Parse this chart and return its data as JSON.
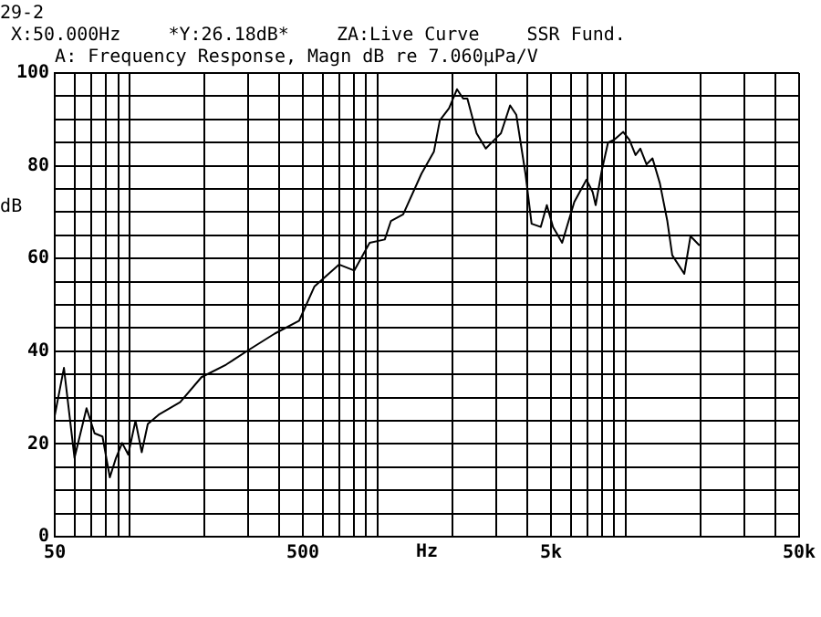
{
  "chart_data": {
    "type": "line",
    "title": "A: Frequency Response, Magn dB re 7.060µPa/V",
    "xlabel": "Hz",
    "ylabel": "dB",
    "annotations": [
      "29-2",
      "X:50.000Hz",
      "*Y:26.18dB*",
      "ZA:Live Curve",
      "SSR Fund."
    ],
    "log": "x",
    "grid": true,
    "marker": "none",
    "line_style": "solid",
    "xlim": [
      50,
      50000
    ],
    "ylim": [
      0,
      100
    ],
    "xticks": [
      50,
      {
        "value": 60,
        "label": null
      },
      {
        "value": 70,
        "label": null
      },
      {
        "value": 80,
        "label": null
      },
      {
        "value": 90,
        "label": null
      },
      {
        "value": 100,
        "label": null
      },
      {
        "value": 200,
        "label": null
      },
      {
        "value": 300,
        "label": null
      },
      {
        "value": 400,
        "label": null
      },
      500,
      {
        "value": 600,
        "label": null
      },
      {
        "value": 700,
        "label": null
      },
      {
        "value": 800,
        "label": null
      },
      {
        "value": 900,
        "label": null
      },
      {
        "value": 1000,
        "label": null
      },
      {
        "value": 2000,
        "label": null
      },
      {
        "value": 3000,
        "label": null
      },
      {
        "value": 4000,
        "label": null
      },
      {
        "value": 5000,
        "label": "5k"
      },
      {
        "value": 6000,
        "label": null
      },
      {
        "value": 7000,
        "label": null
      },
      {
        "value": 8000,
        "label": null
      },
      {
        "value": 9000,
        "label": null
      },
      {
        "value": 10000,
        "label": null
      },
      {
        "value": 20000,
        "label": null
      },
      {
        "value": 30000,
        "label": null
      },
      {
        "value": 40000,
        "label": null
      },
      {
        "value": 50000,
        "label": "50k"
      }
    ],
    "yticks": [
      0,
      {
        "value": 5,
        "label": null
      },
      {
        "value": 10,
        "label": null
      },
      {
        "value": 15,
        "label": null
      },
      20,
      {
        "value": 25,
        "label": null
      },
      {
        "value": 30,
        "label": null
      },
      {
        "value": 35,
        "label": null
      },
      40,
      {
        "value": 45,
        "label": null
      },
      {
        "value": 50,
        "label": null
      },
      {
        "value": 55,
        "label": null
      },
      60,
      {
        "value": 65,
        "label": null
      },
      {
        "value": 70,
        "label": null
      },
      {
        "value": 75,
        "label": null
      },
      80,
      {
        "value": 85,
        "label": null
      },
      {
        "value": 90,
        "label": null
      },
      {
        "value": 95,
        "label": null
      },
      100
    ],
    "series": [
      {
        "color": "#000000",
        "x": [
          50,
          54.4,
          60,
          67.1,
          72.3,
          77.8,
          83.3,
          88.1,
          93.4,
          98.8,
          105.7,
          112,
          118.5,
          131,
          160,
          195,
          245,
          307,
          385,
          483,
          557,
          700,
          805,
          929,
          1069,
          1132,
          1268,
          1503,
          1686,
          1782,
          1941,
          2089,
          2213,
          2301,
          2506,
          2730,
          2970,
          3143,
          3421,
          3623,
          3945,
          4176,
          4546,
          4811,
          5096,
          5546,
          6208,
          6954,
          7363,
          7570,
          8013,
          8490,
          8976,
          9776,
          10350,
          10960,
          11460,
          12140,
          12830,
          13740,
          14720,
          15410,
          17230,
          18250,
          19860
        ],
        "values": [
          26.2,
          36.4,
          17,
          27.7,
          22.3,
          21.6,
          12.8,
          16.9,
          20.2,
          17.7,
          25,
          18.2,
          24.3,
          26.3,
          29,
          34.4,
          37.1,
          40.5,
          43.8,
          46.6,
          54,
          58.7,
          57.4,
          63.4,
          64.1,
          68.1,
          69.5,
          78.3,
          83,
          89.8,
          92.4,
          96.5,
          94.5,
          94.5,
          87,
          83.7,
          85.7,
          87,
          93,
          91,
          78.3,
          67.5,
          66.8,
          71.5,
          66.8,
          63.4,
          72.2,
          77,
          74.3,
          71.5,
          79,
          85,
          85.6,
          87.3,
          85.6,
          82.3,
          83.7,
          80.3,
          81.6,
          76.2,
          68.1,
          60.7,
          56.7,
          64.8,
          62.8
        ]
      }
    ]
  }
}
